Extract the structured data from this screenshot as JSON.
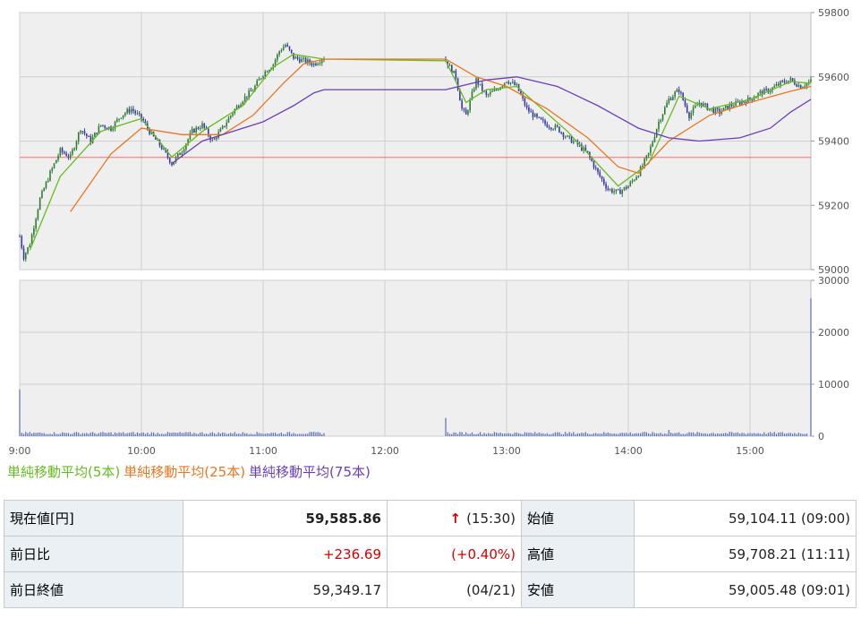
{
  "chart_data": {
    "type": "candlestick",
    "price_axis": {
      "ylim": [
        59000,
        59800
      ],
      "ticks": [
        "59000",
        "59200",
        "59400",
        "59600",
        "59800"
      ]
    },
    "volume_axis": {
      "ylim": [
        0,
        30000
      ],
      "ticks": [
        "0",
        "10000",
        "20000",
        "30000"
      ]
    },
    "x_axis": {
      "ticks": [
        "9:00",
        "10:00",
        "11:00",
        "12:00",
        "13:00",
        "14:00",
        "15:00"
      ]
    },
    "previous_close_line": 59349.17,
    "lunch_break": [
      "11:30",
      "12:30"
    ],
    "close_path": [
      [
        "9:00",
        59104
      ],
      [
        "9:02",
        59040
      ],
      [
        "9:05",
        59080
      ],
      [
        "9:10",
        59220
      ],
      [
        "9:15",
        59300
      ],
      [
        "9:20",
        59370
      ],
      [
        "9:25",
        59350
      ],
      [
        "9:30",
        59440
      ],
      [
        "9:35",
        59400
      ],
      [
        "9:40",
        59450
      ],
      [
        "9:45",
        59440
      ],
      [
        "9:50",
        59480
      ],
      [
        "9:55",
        59500
      ],
      [
        "10:00",
        59470
      ],
      [
        "10:05",
        59420
      ],
      [
        "10:10",
        59380
      ],
      [
        "10:15",
        59330
      ],
      [
        "10:20",
        59370
      ],
      [
        "10:25",
        59430
      ],
      [
        "10:30",
        59450
      ],
      [
        "10:35",
        59400
      ],
      [
        "10:40",
        59440
      ],
      [
        "10:45",
        59490
      ],
      [
        "10:50",
        59530
      ],
      [
        "10:55",
        59560
      ],
      [
        "11:00",
        59610
      ],
      [
        "11:05",
        59640
      ],
      [
        "11:08",
        59680
      ],
      [
        "11:11",
        59700
      ],
      [
        "11:15",
        59660
      ],
      [
        "11:20",
        59650
      ],
      [
        "11:25",
        59640
      ],
      [
        "11:30",
        59660
      ],
      [
        "12:30",
        59650
      ],
      [
        "12:35",
        59600
      ],
      [
        "12:38",
        59500
      ],
      [
        "12:40",
        59480
      ],
      [
        "12:45",
        59590
      ],
      [
        "12:50",
        59540
      ],
      [
        "12:55",
        59560
      ],
      [
        "13:00",
        59590
      ],
      [
        "13:05",
        59570
      ],
      [
        "13:10",
        59500
      ],
      [
        "13:15",
        59470
      ],
      [
        "13:20",
        59450
      ],
      [
        "13:25",
        59440
      ],
      [
        "13:30",
        59410
      ],
      [
        "13:35",
        59390
      ],
      [
        "13:40",
        59360
      ],
      [
        "13:45",
        59300
      ],
      [
        "13:50",
        59250
      ],
      [
        "13:55",
        59240
      ],
      [
        "14:00",
        59260
      ],
      [
        "14:05",
        59300
      ],
      [
        "14:10",
        59360
      ],
      [
        "14:15",
        59460
      ],
      [
        "14:20",
        59530
      ],
      [
        "14:25",
        59560
      ],
      [
        "14:30",
        59480
      ],
      [
        "14:35",
        59520
      ],
      [
        "14:40",
        59500
      ],
      [
        "14:45",
        59490
      ],
      [
        "14:50",
        59510
      ],
      [
        "14:55",
        59520
      ],
      [
        "15:00",
        59530
      ],
      [
        "15:05",
        59550
      ],
      [
        "15:10",
        59560
      ],
      [
        "15:15",
        59580
      ],
      [
        "15:20",
        59590
      ],
      [
        "15:25",
        59570
      ],
      [
        "15:30",
        59586
      ]
    ],
    "volume_spikes": [
      [
        "9:00",
        9000
      ],
      [
        "12:30",
        3500
      ],
      [
        "14:20",
        1200
      ],
      [
        "15:30",
        26500
      ]
    ],
    "volume_base": 600,
    "series": [
      {
        "name": "単純移動平均(5本)",
        "color": "#66bb22",
        "points": [
          [
            "9:05",
            59060
          ],
          [
            "9:20",
            59290
          ],
          [
            "9:40",
            59430
          ],
          [
            "10:00",
            59470
          ],
          [
            "10:15",
            59350
          ],
          [
            "10:30",
            59430
          ],
          [
            "10:50",
            59510
          ],
          [
            "11:05",
            59630
          ],
          [
            "11:15",
            59670
          ],
          [
            "11:30",
            59655
          ],
          [
            "12:30",
            59650
          ],
          [
            "12:40",
            59520
          ],
          [
            "12:50",
            59560
          ],
          [
            "13:05",
            59570
          ],
          [
            "13:30",
            59430
          ],
          [
            "13:55",
            59260
          ],
          [
            "14:10",
            59330
          ],
          [
            "14:25",
            59540
          ],
          [
            "14:40",
            59500
          ],
          [
            "15:00",
            59530
          ],
          [
            "15:20",
            59585
          ],
          [
            "15:30",
            59580
          ]
        ]
      },
      {
        "name": "単純移動平均(25本)",
        "color": "#e87722",
        "points": [
          [
            "9:25",
            59180
          ],
          [
            "9:45",
            59360
          ],
          [
            "10:00",
            59440
          ],
          [
            "10:20",
            59420
          ],
          [
            "10:40",
            59420
          ],
          [
            "10:55",
            59480
          ],
          [
            "11:10",
            59580
          ],
          [
            "11:20",
            59640
          ],
          [
            "11:30",
            59655
          ],
          [
            "12:30",
            59655
          ],
          [
            "12:45",
            59600
          ],
          [
            "13:00",
            59570
          ],
          [
            "13:20",
            59500
          ],
          [
            "13:40",
            59410
          ],
          [
            "13:55",
            59320
          ],
          [
            "14:05",
            59300
          ],
          [
            "14:20",
            59400
          ],
          [
            "14:40",
            59480
          ],
          [
            "15:00",
            59520
          ],
          [
            "15:20",
            59555
          ],
          [
            "15:30",
            59570
          ]
        ]
      },
      {
        "name": "単純移動平均(75本)",
        "color": "#6a3fb5",
        "points": [
          [
            "10:15",
            59330
          ],
          [
            "10:30",
            59400
          ],
          [
            "10:45",
            59430
          ],
          [
            "11:00",
            59460
          ],
          [
            "11:15",
            59510
          ],
          [
            "11:25",
            59550
          ],
          [
            "11:30",
            59560
          ],
          [
            "12:30",
            59560
          ],
          [
            "12:50",
            59590
          ],
          [
            "13:05",
            59600
          ],
          [
            "13:25",
            59570
          ],
          [
            "13:45",
            59510
          ],
          [
            "14:05",
            59440
          ],
          [
            "14:20",
            59410
          ],
          [
            "14:35",
            59400
          ],
          [
            "14:55",
            59410
          ],
          [
            "15:10",
            59440
          ],
          [
            "15:20",
            59490
          ],
          [
            "15:30",
            59530
          ]
        ]
      }
    ]
  },
  "legend": {
    "ma5": "単純移動平均(5本)",
    "ma25": "単純移動平均(25本)",
    "ma75": "単純移動平均(75本)"
  },
  "quote_table": {
    "current_label": "現在値[円]",
    "current_value": "59,585.86",
    "current_time": "(15:30)",
    "change_label": "前日比",
    "change_value": "+236.69",
    "change_pct": "(+0.40%)",
    "prev_close_label": "前日終値",
    "prev_close_value": "59,349.17",
    "prev_close_date": "(04/21)",
    "open_label": "始値",
    "open_value": "59,104.11 (09:00)",
    "high_label": "高値",
    "high_value": "59,708.21 (11:11)",
    "low_label": "安値",
    "low_value": "59,005.48 (09:01)"
  },
  "colors": {
    "up": "#2e7d32",
    "down": "#3a3a9f",
    "prev_close": "#ff6b6b",
    "volume": "#5b6bb8",
    "plot_bg": "#efefef"
  }
}
